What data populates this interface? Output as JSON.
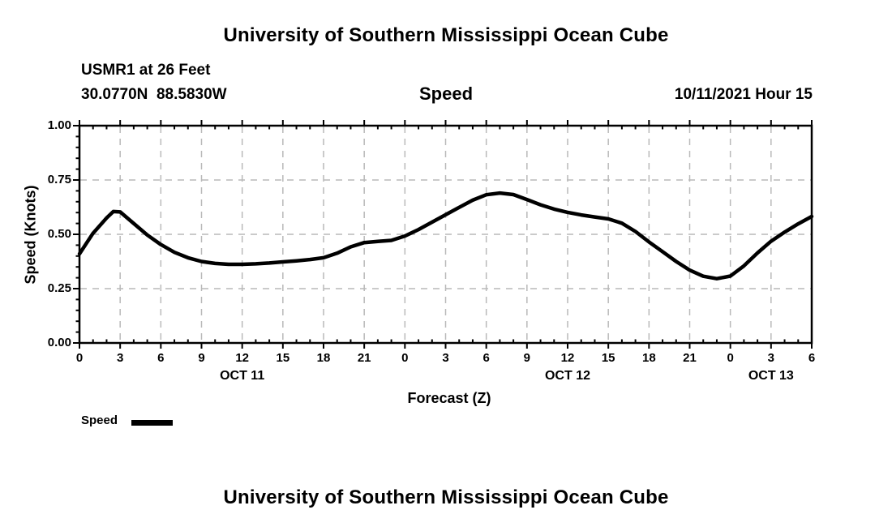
{
  "header": {
    "title": "University of Southern Mississippi Ocean Cube",
    "station_line": "USMR1 at 26 Feet",
    "coords_line": "30.0770N  88.5830W",
    "plot_title": "Speed",
    "datetime_label": "10/11/2021 Hour 15"
  },
  "footer": {
    "title": "University of Southern Mississippi Ocean Cube"
  },
  "legend": {
    "label": "Speed"
  },
  "colors": {
    "background": "#ffffff",
    "axis": "#000000",
    "grid": "#b9b9b9",
    "curve": "#000000",
    "text": "#000000"
  },
  "chart_data": {
    "type": "line",
    "title": "Speed",
    "xlabel": "Forecast (Z)",
    "ylabel": "Speed (Knots)",
    "ylim": [
      0.0,
      1.0
    ],
    "x_hours_total": 54,
    "grid": true,
    "grid_style": "dashed",
    "legend_position": "bottom-left",
    "yticks": [
      {
        "v": 0.0,
        "label": "0.00"
      },
      {
        "v": 0.25,
        "label": "0.25"
      },
      {
        "v": 0.5,
        "label": "0.50"
      },
      {
        "v": 0.75,
        "label": "0.75"
      },
      {
        "v": 1.0,
        "label": "1.00"
      }
    ],
    "y_minor_step": 0.05,
    "x_minor_step": 1,
    "xticks": [
      {
        "t": 0,
        "label": "0"
      },
      {
        "t": 3,
        "label": "3"
      },
      {
        "t": 6,
        "label": "6"
      },
      {
        "t": 9,
        "label": "9"
      },
      {
        "t": 12,
        "label": "12"
      },
      {
        "t": 15,
        "label": "15"
      },
      {
        "t": 18,
        "label": "18"
      },
      {
        "t": 21,
        "label": "21"
      },
      {
        "t": 24,
        "label": "0"
      },
      {
        "t": 27,
        "label": "3"
      },
      {
        "t": 30,
        "label": "6"
      },
      {
        "t": 33,
        "label": "9"
      },
      {
        "t": 36,
        "label": "12"
      },
      {
        "t": 39,
        "label": "15"
      },
      {
        "t": 42,
        "label": "18"
      },
      {
        "t": 45,
        "label": "21"
      },
      {
        "t": 48,
        "label": "0"
      },
      {
        "t": 51,
        "label": "3"
      },
      {
        "t": 54,
        "label": "6"
      }
    ],
    "day_labels": [
      {
        "label": "OCT 11",
        "start": 0,
        "end": 24
      },
      {
        "label": "OCT 12",
        "start": 24,
        "end": 48
      },
      {
        "label": "OCT 13",
        "start": 48,
        "end": 54
      }
    ],
    "series": [
      {
        "name": "Speed",
        "color": "#000000",
        "points": [
          [
            0,
            0.41
          ],
          [
            1,
            0.505
          ],
          [
            2,
            0.575
          ],
          [
            2.5,
            0.605
          ],
          [
            3,
            0.603
          ],
          [
            4,
            0.55
          ],
          [
            5,
            0.497
          ],
          [
            6,
            0.453
          ],
          [
            7,
            0.417
          ],
          [
            8,
            0.392
          ],
          [
            9,
            0.375
          ],
          [
            10,
            0.366
          ],
          [
            11,
            0.362
          ],
          [
            12,
            0.362
          ],
          [
            13,
            0.364
          ],
          [
            14,
            0.368
          ],
          [
            15,
            0.373
          ],
          [
            16,
            0.378
          ],
          [
            17,
            0.384
          ],
          [
            18,
            0.392
          ],
          [
            19,
            0.413
          ],
          [
            20,
            0.442
          ],
          [
            21,
            0.462
          ],
          [
            22,
            0.467
          ],
          [
            23,
            0.472
          ],
          [
            24,
            0.492
          ],
          [
            25,
            0.522
          ],
          [
            26,
            0.556
          ],
          [
            27,
            0.59
          ],
          [
            28,
            0.624
          ],
          [
            29,
            0.657
          ],
          [
            30,
            0.682
          ],
          [
            31,
            0.69
          ],
          [
            32,
            0.683
          ],
          [
            33,
            0.66
          ],
          [
            34,
            0.636
          ],
          [
            35,
            0.616
          ],
          [
            36,
            0.601
          ],
          [
            37,
            0.589
          ],
          [
            38,
            0.58
          ],
          [
            39,
            0.571
          ],
          [
            40,
            0.551
          ],
          [
            41,
            0.513
          ],
          [
            42,
            0.465
          ],
          [
            43,
            0.42
          ],
          [
            44,
            0.375
          ],
          [
            45,
            0.335
          ],
          [
            46,
            0.307
          ],
          [
            47,
            0.296
          ],
          [
            48,
            0.308
          ],
          [
            49,
            0.355
          ],
          [
            50,
            0.414
          ],
          [
            51,
            0.468
          ],
          [
            52,
            0.51
          ],
          [
            53,
            0.548
          ],
          [
            54,
            0.582
          ]
        ]
      }
    ]
  }
}
